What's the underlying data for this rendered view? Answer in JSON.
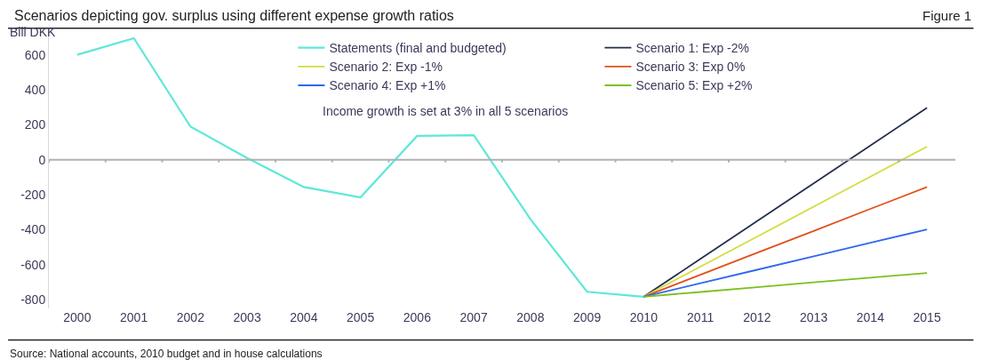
{
  "chart_data": {
    "type": "line",
    "title": "Scenarios depicting gov. surplus using different expense growth ratios",
    "ylabel": "Bill DKK",
    "annotations": [
      "Figure 1",
      "Income growth is set at 3% in all 5 scenarios",
      "Source: National accounts, 2010 budget and in house calculations"
    ],
    "x": [
      2000,
      2001,
      2002,
      2003,
      2004,
      2005,
      2006,
      2007,
      2008,
      2009,
      2010,
      2011,
      2012,
      2013,
      2014,
      2015
    ],
    "series": [
      {
        "name": "Statements (final and budgeted)",
        "color": "#5ee8d8",
        "values": [
          600,
          695,
          189,
          10,
          -156,
          -215,
          136,
          140,
          -340,
          -755,
          -783,
          null,
          null,
          null,
          null,
          null
        ]
      },
      {
        "name": "Scenario 1: Exp -2%",
        "color": "#243049",
        "values": [
          null,
          null,
          null,
          null,
          null,
          null,
          null,
          null,
          null,
          null,
          -783,
          -567,
          -351,
          -135,
          81,
          297
        ]
      },
      {
        "name": "Scenario 2: Exp -1%",
        "color": "#d4dc3c",
        "values": [
          null,
          null,
          null,
          null,
          null,
          null,
          null,
          null,
          null,
          null,
          -783,
          -611,
          -440,
          -268,
          -97,
          75
        ]
      },
      {
        "name": "Scenario 3: Exp 0%",
        "color": "#e0501a",
        "values": [
          null,
          null,
          null,
          null,
          null,
          null,
          null,
          null,
          null,
          null,
          -783,
          -658,
          -532,
          -407,
          -281,
          -156
        ]
      },
      {
        "name": "Scenario 4: Exp +1%",
        "color": "#3068f0",
        "values": [
          null,
          null,
          null,
          null,
          null,
          null,
          null,
          null,
          null,
          null,
          -783,
          -706,
          -629,
          -552,
          -475,
          -398
        ]
      },
      {
        "name": "Scenario 5: Exp +2%",
        "color": "#7cc01c",
        "values": [
          null,
          null,
          null,
          null,
          null,
          null,
          null,
          null,
          null,
          null,
          -783,
          -756,
          -729,
          -701,
          -674,
          -647
        ]
      }
    ],
    "xlim": [
      1999.5,
      2015.5
    ],
    "xticks": [
      2000,
      2001,
      2002,
      2003,
      2004,
      2005,
      2006,
      2007,
      2008,
      2009,
      2010,
      2011,
      2012,
      2013,
      2014,
      2015
    ],
    "ylim": [
      -850,
      720
    ],
    "yticks": [
      -800,
      -600,
      -400,
      -200,
      0,
      200,
      400,
      600
    ],
    "ref_lines": [
      {
        "axis": "y",
        "value": 0,
        "color": "#b0b0b0"
      }
    ],
    "legend": "top",
    "marker": "none",
    "line_style": "solid"
  }
}
